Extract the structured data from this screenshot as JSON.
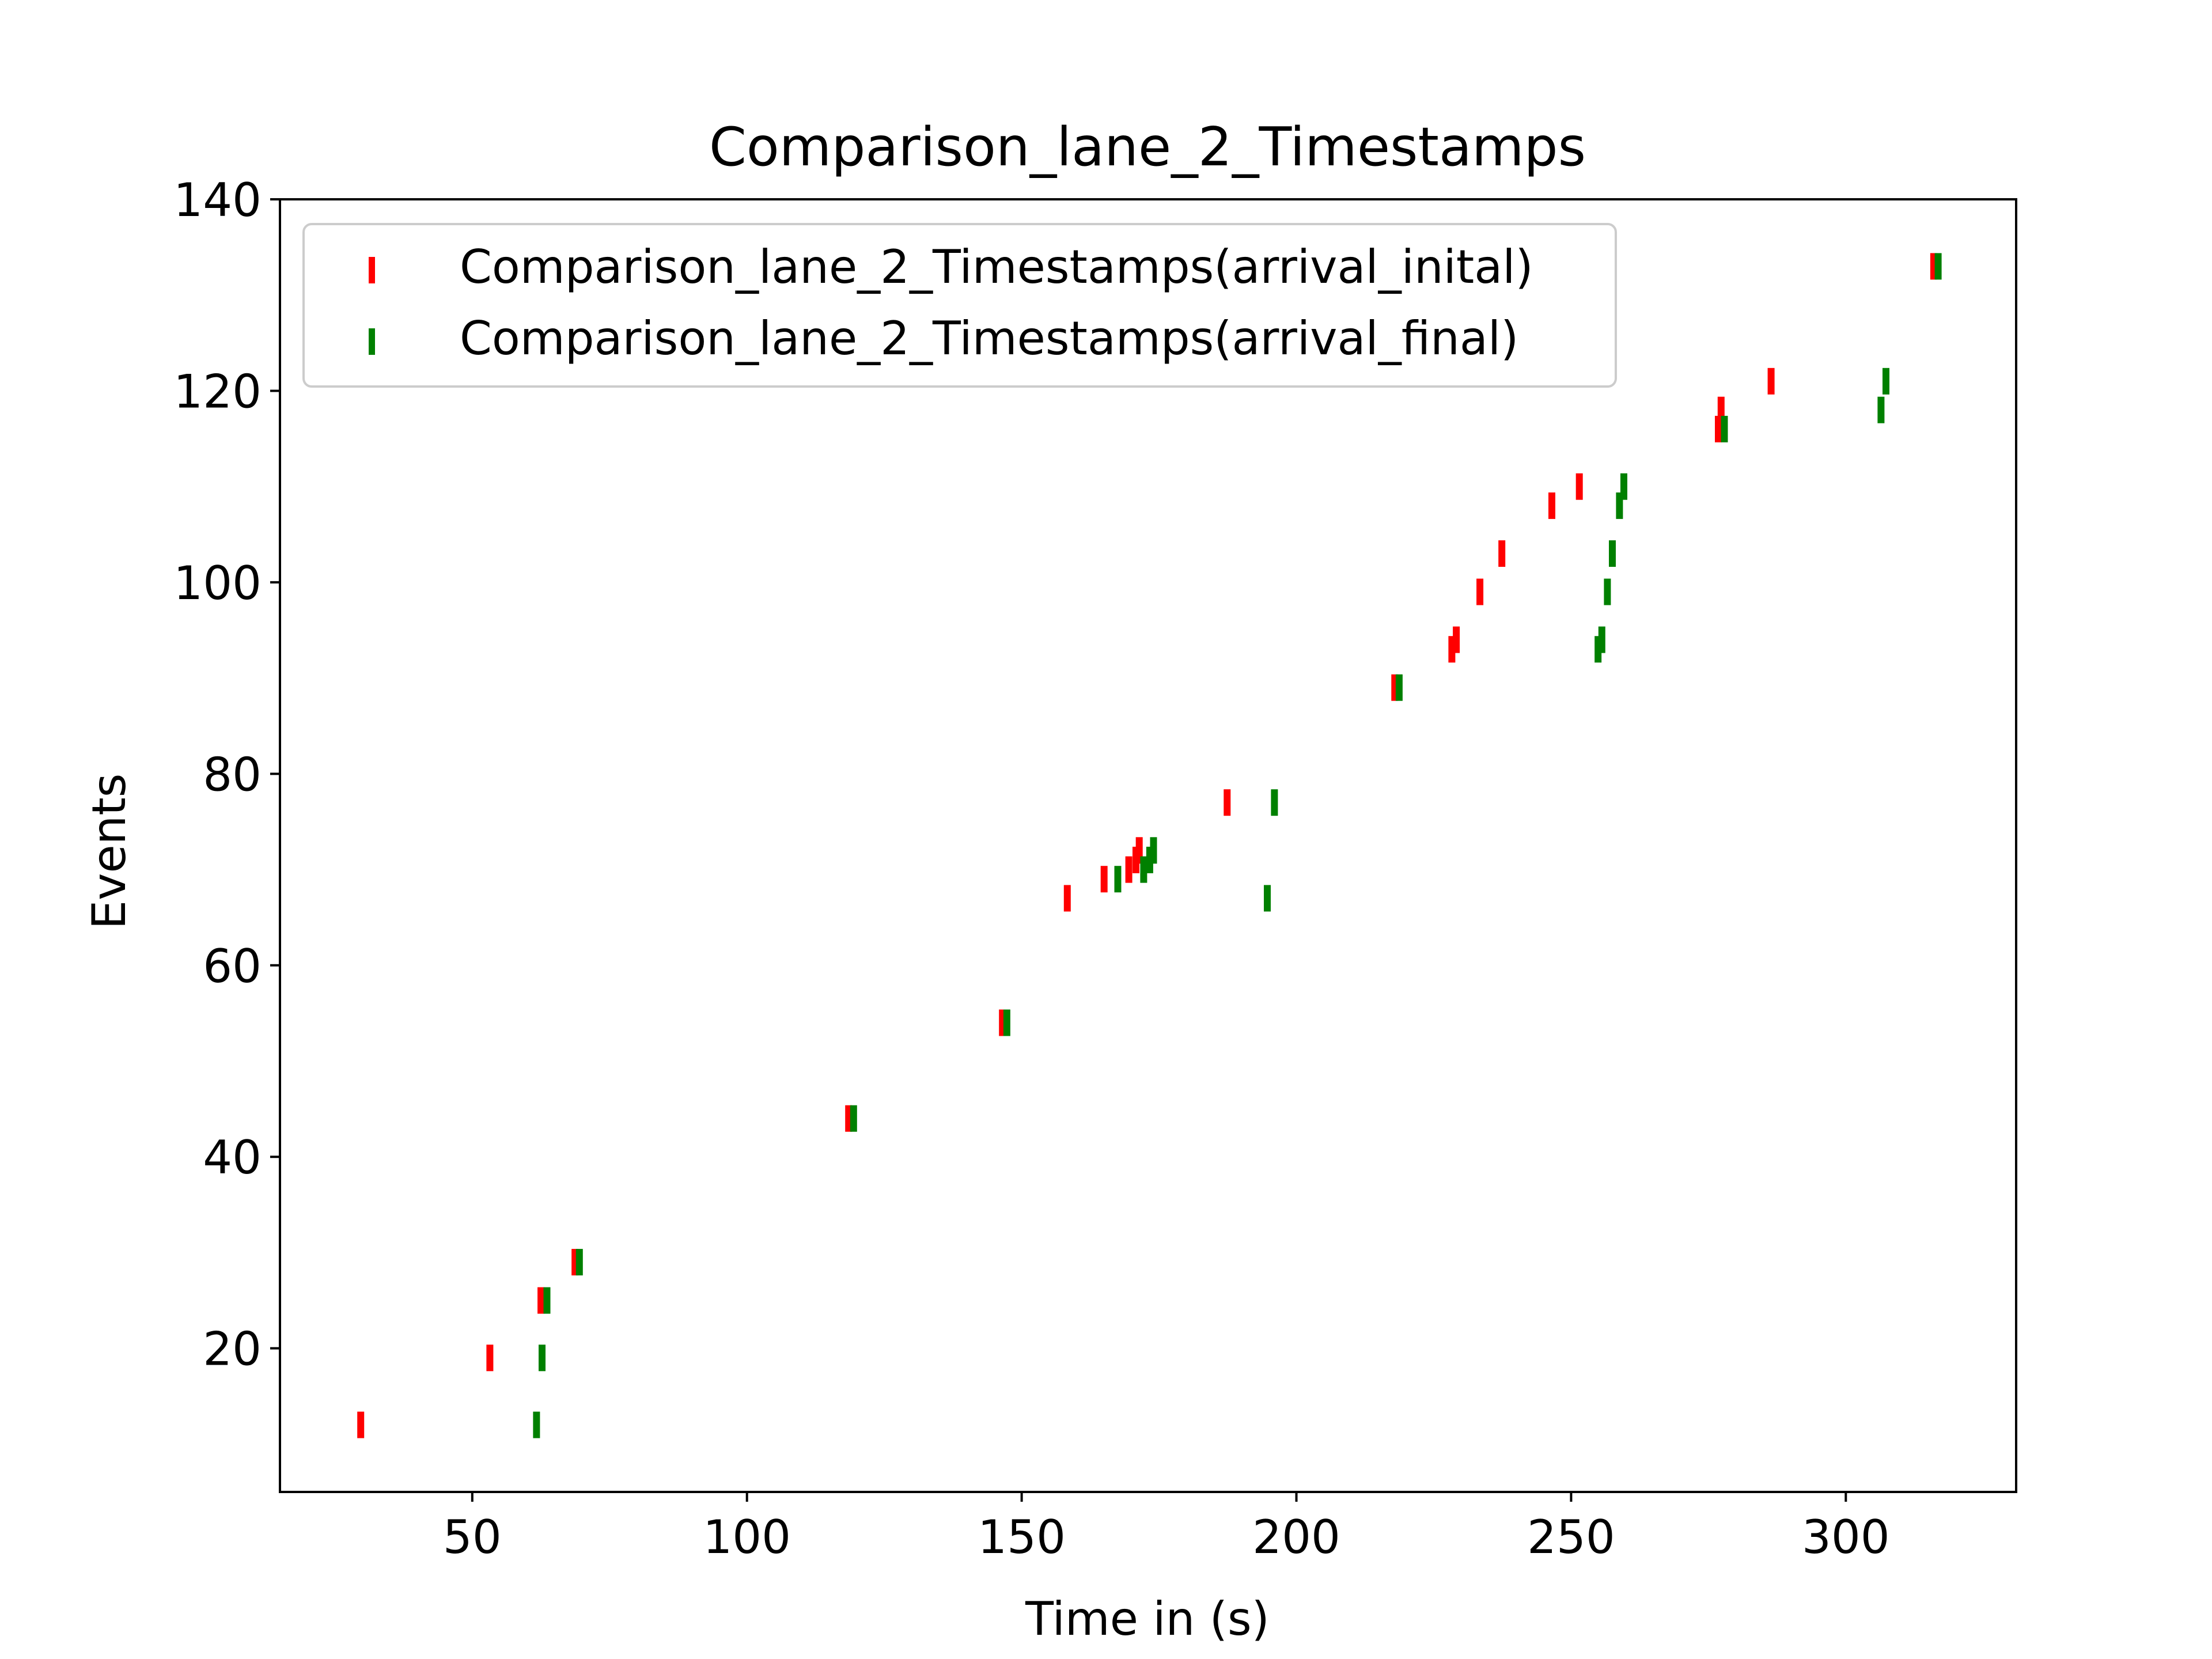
{
  "chart_data": {
    "type": "scatter",
    "marker": "vertical-tick",
    "title": "Comparison_lane_2_Timestamps",
    "xlabel": "Time in (s)",
    "ylabel": "Events",
    "xlim": [
      15,
      331
    ],
    "ylim": [
      5,
      140
    ],
    "xticks": [
      50,
      100,
      150,
      200,
      250,
      300
    ],
    "yticks": [
      20,
      40,
      60,
      80,
      100,
      120,
      140
    ],
    "grid": false,
    "legend_position": "top-left",
    "series": [
      {
        "name": "Comparison_lane_2_Timestamps(arrival_inital)",
        "color": "#ff0000",
        "points": [
          {
            "x": 29.7,
            "y": 12
          },
          {
            "x": 53.2,
            "y": 19
          },
          {
            "x": 62.5,
            "y": 25
          },
          {
            "x": 68.7,
            "y": 29
          },
          {
            "x": 118.5,
            "y": 44
          },
          {
            "x": 146.5,
            "y": 54
          },
          {
            "x": 158.3,
            "y": 67
          },
          {
            "x": 165.0,
            "y": 69
          },
          {
            "x": 169.5,
            "y": 70
          },
          {
            "x": 170.8,
            "y": 71
          },
          {
            "x": 171.4,
            "y": 72
          },
          {
            "x": 187.4,
            "y": 77
          },
          {
            "x": 217.9,
            "y": 89
          },
          {
            "x": 228.3,
            "y": 93
          },
          {
            "x": 229.1,
            "y": 94
          },
          {
            "x": 233.4,
            "y": 99
          },
          {
            "x": 237.4,
            "y": 103
          },
          {
            "x": 246.5,
            "y": 108
          },
          {
            "x": 251.5,
            "y": 110
          },
          {
            "x": 276.8,
            "y": 116
          },
          {
            "x": 277.3,
            "y": 118
          },
          {
            "x": 286.4,
            "y": 121
          },
          {
            "x": 316.0,
            "y": 133
          }
        ]
      },
      {
        "name": "Comparison_lane_2_Timestamps(arrival_final)",
        "color": "#008000",
        "points": [
          {
            "x": 61.7,
            "y": 12
          },
          {
            "x": 62.7,
            "y": 19
          },
          {
            "x": 63.6,
            "y": 25
          },
          {
            "x": 69.5,
            "y": 29
          },
          {
            "x": 119.4,
            "y": 44
          },
          {
            "x": 147.3,
            "y": 54
          },
          {
            "x": 167.5,
            "y": 69
          },
          {
            "x": 172.2,
            "y": 70
          },
          {
            "x": 173.3,
            "y": 71
          },
          {
            "x": 174.0,
            "y": 72
          },
          {
            "x": 194.7,
            "y": 67
          },
          {
            "x": 196.0,
            "y": 77
          },
          {
            "x": 218.7,
            "y": 89
          },
          {
            "x": 254.9,
            "y": 93
          },
          {
            "x": 255.6,
            "y": 94
          },
          {
            "x": 256.6,
            "y": 99
          },
          {
            "x": 257.5,
            "y": 103
          },
          {
            "x": 258.8,
            "y": 108
          },
          {
            "x": 259.6,
            "y": 110
          },
          {
            "x": 277.9,
            "y": 116
          },
          {
            "x": 306.4,
            "y": 118
          },
          {
            "x": 307.3,
            "y": 121
          },
          {
            "x": 316.8,
            "y": 133
          }
        ]
      }
    ]
  }
}
